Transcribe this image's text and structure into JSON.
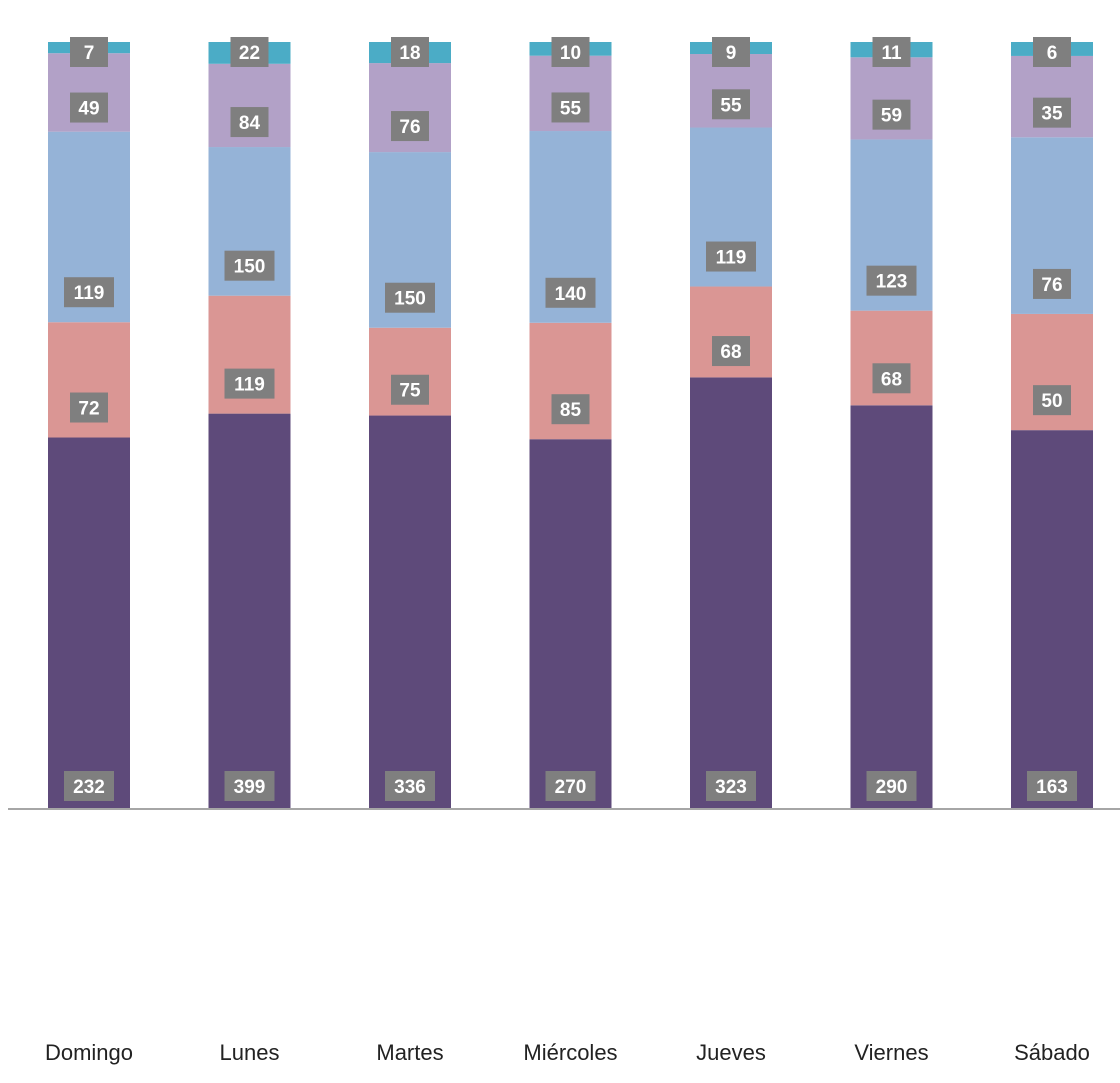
{
  "chart_data": {
    "type": "bar",
    "stacked": true,
    "percent_stacked": true,
    "categories": [
      "Domingo",
      "Lunes",
      "Martes",
      "Miércoles",
      "Jueves",
      "Viernes",
      "Sábado"
    ],
    "series": [
      {
        "values": [
          232,
          399,
          336,
          270,
          323,
          290,
          163
        ],
        "color": "#5e4a7a"
      },
      {
        "values": [
          72,
          119,
          75,
          85,
          68,
          68,
          50
        ],
        "color": "#da9694"
      },
      {
        "values": [
          119,
          150,
          150,
          140,
          119,
          123,
          76
        ],
        "color": "#95b3d7"
      },
      {
        "values": [
          49,
          84,
          76,
          55,
          55,
          59,
          35
        ],
        "color": "#b2a1c7"
      },
      {
        "values": [
          7,
          22,
          18,
          10,
          9,
          11,
          6
        ],
        "color": "#4bacc6"
      }
    ],
    "data_label_box_color": "#7f7f7f",
    "data_label_text_color": "#ffffff",
    "axis_line_color": "#a6a6a6",
    "legend": "none",
    "grid": false
  }
}
